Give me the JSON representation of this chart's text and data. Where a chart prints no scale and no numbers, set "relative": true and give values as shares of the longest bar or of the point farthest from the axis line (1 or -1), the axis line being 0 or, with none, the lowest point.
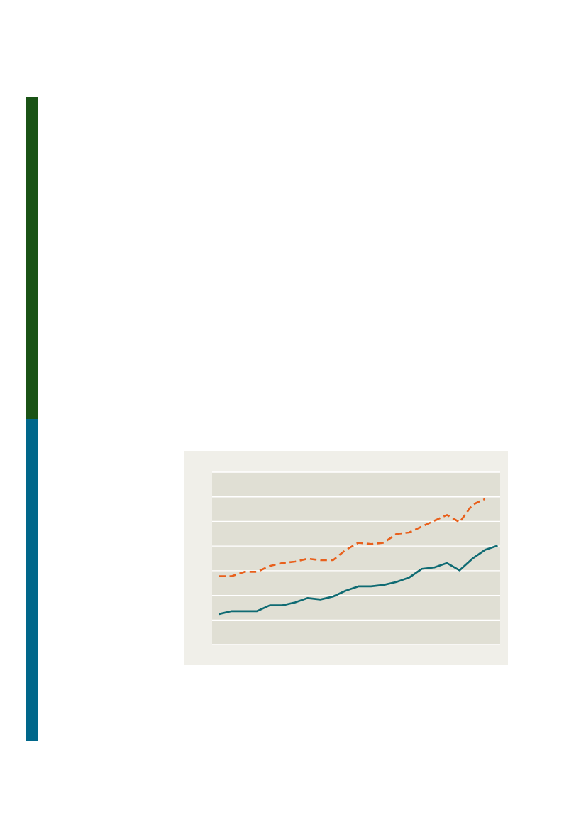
{
  "chart_data": {
    "type": "line",
    "relative": true,
    "categories": [
      null,
      null,
      null,
      null,
      null,
      null,
      null,
      null,
      null,
      null,
      null,
      null,
      null,
      null,
      null,
      null,
      null,
      null,
      null,
      null,
      null,
      null,
      null
    ],
    "series": [
      {
        "color": "#0f6b73",
        "line_style": "solid",
        "values": [
          0.21,
          0.23,
          0.23,
          0.23,
          0.27,
          0.27,
          0.29,
          0.32,
          0.31,
          0.33,
          0.37,
          0.4,
          0.4,
          0.41,
          0.43,
          0.46,
          0.52,
          0.53,
          0.56,
          0.51,
          0.59,
          0.65,
          0.68
        ]
      },
      {
        "color": "#e8601c",
        "line_style": "dashed",
        "values": [
          0.47,
          0.47,
          0.5,
          0.5,
          0.54,
          0.56,
          0.57,
          0.59,
          0.58,
          0.58,
          0.65,
          0.7,
          0.69,
          0.7,
          0.76,
          0.77,
          0.81,
          0.85,
          0.89,
          0.84,
          0.96,
          1.0,
          null
        ]
      }
    ],
    "grid": "y",
    "marker": "none"
  }
}
